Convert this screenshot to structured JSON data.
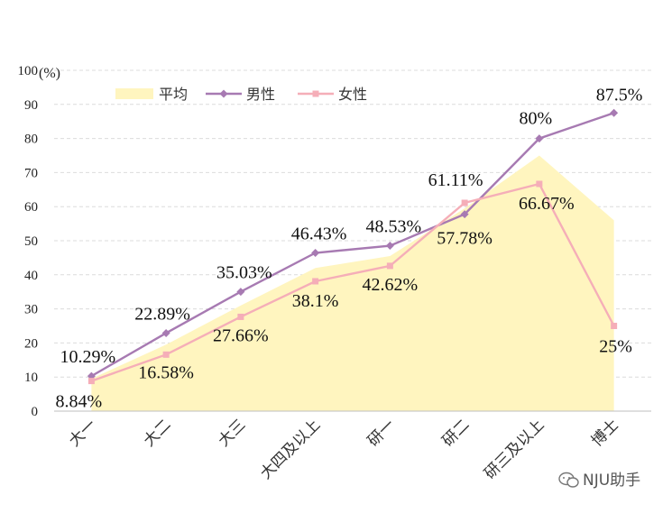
{
  "chart_data": {
    "type": "line",
    "categories": [
      "大一",
      "大二",
      "大三",
      "大四及以上",
      "研一",
      "研二",
      "研三及以上",
      "博士"
    ],
    "ylabel": "(%)",
    "ylim": [
      0,
      100
    ],
    "yticks": [
      0,
      10,
      20,
      30,
      40,
      50,
      60,
      70,
      80,
      90,
      100
    ],
    "grid": true,
    "legend_position": "top-left",
    "series": [
      {
        "name": "平均",
        "kind": "area",
        "color": "#FFF5BF",
        "values": [
          9.5,
          19.5,
          31,
          42,
          45.5,
          59.5,
          75,
          56
        ]
      },
      {
        "name": "男性",
        "kind": "line",
        "marker": "diamond",
        "color": "#A77AB2",
        "values": [
          10.29,
          22.89,
          35.03,
          46.43,
          48.53,
          57.78,
          80,
          87.5
        ],
        "labels": [
          "10.29%",
          "22.89%",
          "35.03%",
          "46.43%",
          "48.53%",
          "57.78%",
          "80%",
          "87.5%"
        ]
      },
      {
        "name": "女性",
        "kind": "line",
        "marker": "square",
        "color": "#F5AEB8",
        "values": [
          8.84,
          16.58,
          27.66,
          38.1,
          42.62,
          61.11,
          66.67,
          25
        ],
        "labels": [
          "8.84%",
          "16.58%",
          "27.66%",
          "38.1%",
          "42.62%",
          "61.11%",
          "66.67%",
          "25%"
        ]
      }
    ]
  },
  "watermark": {
    "icon": "wechat-icon",
    "text": "NJU助手"
  }
}
